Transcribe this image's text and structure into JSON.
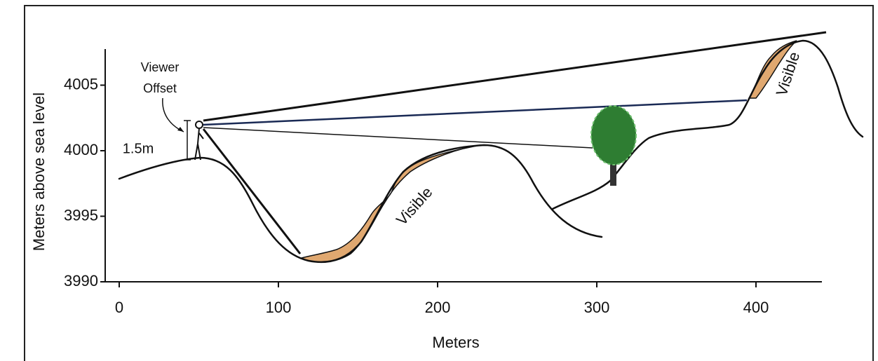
{
  "x_axis": {
    "label": "Meters",
    "ticks": [
      0,
      100,
      200,
      300,
      400
    ]
  },
  "y_axis": {
    "label": "Meters above sea level",
    "ticks": [
      3990,
      3995,
      4000,
      4005
    ]
  },
  "annotations": {
    "viewer_offset": [
      "Viewer",
      "Offset"
    ],
    "offset_height": "1.5m",
    "visible": [
      "Visible",
      "Visible"
    ]
  }
}
